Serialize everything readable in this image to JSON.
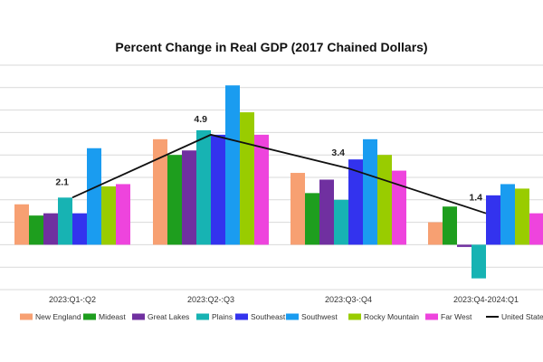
{
  "chart_data": {
    "type": "bar",
    "title": "Percent Change in Real GDP (2017 Chained Dollars)",
    "xlabel": "",
    "ylabel": "",
    "ylim": [
      -2,
      8
    ],
    "ytick_step": 1,
    "grid": true,
    "legend_position": "bottom",
    "categories": [
      "2023:Q1-:Q2",
      "2023:Q2-:Q3",
      "2023:Q3-:Q4",
      "2023:Q4-2024:Q1"
    ],
    "series": [
      {
        "name": "New England",
        "color": "#F7A072",
        "values": [
          1.8,
          4.7,
          3.2,
          1.0
        ]
      },
      {
        "name": "Mideast",
        "color": "#1E9E1E",
        "values": [
          1.3,
          4.0,
          2.3,
          1.7
        ]
      },
      {
        "name": "Great Lakes",
        "color": "#7030A0",
        "values": [
          1.4,
          4.2,
          2.9,
          -0.1
        ]
      },
      {
        "name": "Plains",
        "color": "#17B3B3",
        "values": [
          2.1,
          5.1,
          2.0,
          -1.5
        ]
      },
      {
        "name": "Southeast",
        "color": "#3333EE",
        "values": [
          1.4,
          4.9,
          3.8,
          2.2
        ]
      },
      {
        "name": "Southwest",
        "color": "#1A9CF0",
        "values": [
          4.3,
          7.1,
          4.7,
          2.7
        ]
      },
      {
        "name": "Rocky Mountain",
        "color": "#99CC00",
        "values": [
          2.6,
          5.9,
          4.0,
          2.5
        ]
      },
      {
        "name": "Far West",
        "color": "#EE44DD",
        "values": [
          2.7,
          4.9,
          3.3,
          1.4
        ]
      }
    ],
    "line_series": {
      "name": "United States",
      "color": "#111111",
      "values": [
        2.1,
        4.9,
        3.4,
        1.4
      ]
    },
    "data_labels": [
      "2.1",
      "4.9",
      "3.4",
      "1.4"
    ]
  }
}
